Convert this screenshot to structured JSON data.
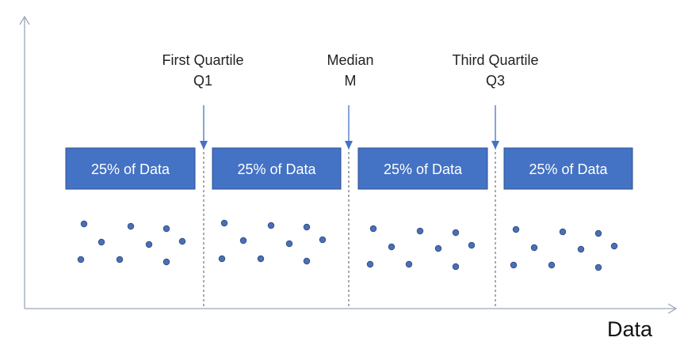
{
  "axis": {
    "x_label": "Data",
    "color": "#9aa7b8"
  },
  "markers": [
    {
      "line1": "First Quartile",
      "line2": "Q1"
    },
    {
      "line1": "Median",
      "line2": "M"
    },
    {
      "line1": "Third Quartile",
      "line2": "Q3"
    }
  ],
  "segments": [
    {
      "label": "25% of Data"
    },
    {
      "label": "25% of Data"
    },
    {
      "label": "25% of Data"
    },
    {
      "label": "25% of Data"
    }
  ],
  "colors": {
    "box_fill": "#4472c4",
    "box_stroke": "#2f528f",
    "box_text": "#ffffff",
    "arrow": "#4472c4",
    "dot_fill": "#4a6fb3",
    "dot_stroke": "#2a4a86",
    "divider": "#555555"
  }
}
